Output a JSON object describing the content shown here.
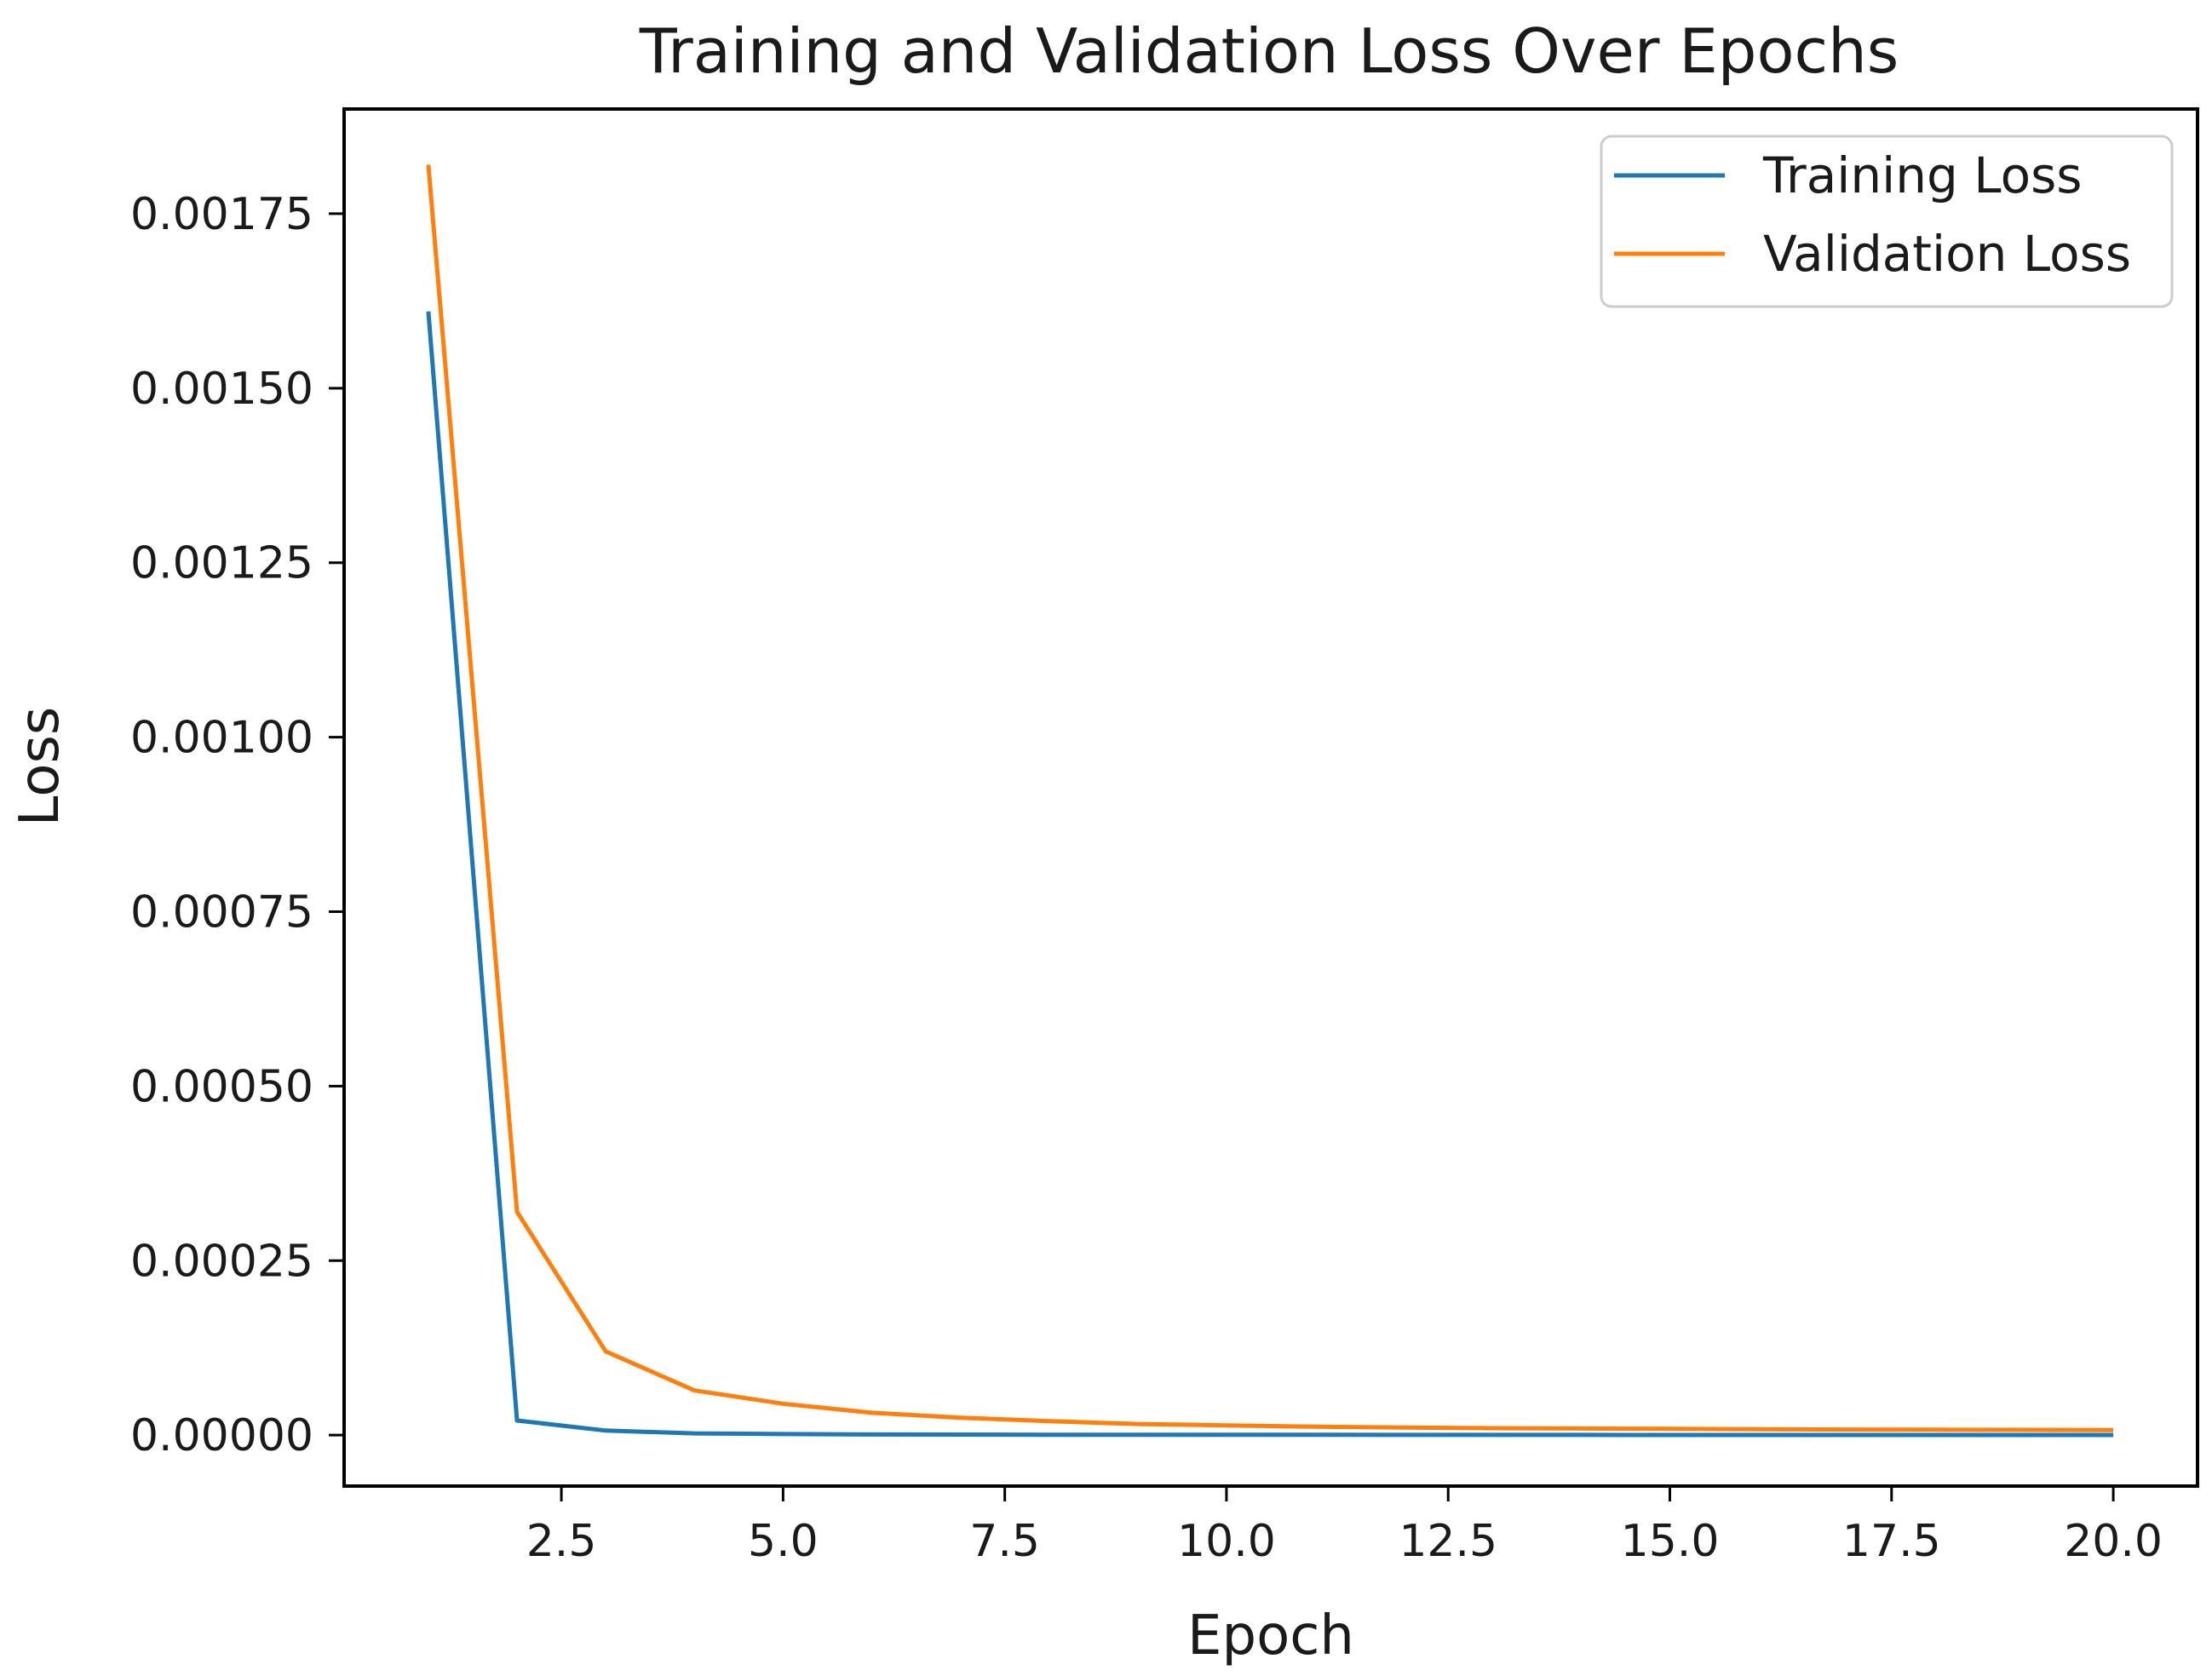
{
  "chart_data": {
    "type": "line",
    "title": "Training and Validation Loss Over Epochs",
    "xlabel": "Epoch",
    "ylabel": "Loss",
    "xlim": [
      0.05,
      20.95
    ],
    "ylim": [
      -7.3e-05,
      0.0019
    ],
    "x_ticks": [
      2.5,
      5.0,
      7.5,
      10.0,
      12.5,
      15.0,
      17.5,
      20.0
    ],
    "x_tick_labels": [
      "2.5",
      "5.0",
      "7.5",
      "10.0",
      "12.5",
      "15.0",
      "17.5",
      "20.0"
    ],
    "y_ticks": [
      0.0,
      0.00025,
      0.0005,
      0.00075,
      0.001,
      0.00125,
      0.0015,
      0.00175
    ],
    "y_tick_labels": [
      "0.00000",
      "0.00025",
      "0.00050",
      "0.00075",
      "0.00100",
      "0.00125",
      "0.00150",
      "0.00175"
    ],
    "grid": false,
    "legend_position": "top-right",
    "x": [
      1,
      2,
      3,
      4,
      5,
      6,
      7,
      8,
      9,
      10,
      11,
      12,
      13,
      14,
      15,
      16,
      17,
      18,
      19,
      20
    ],
    "series": [
      {
        "name": "Training Loss",
        "color": "#1f77b4",
        "values": [
          0.00161,
          2.1e-05,
          6.5e-06,
          2.5e-06,
          1.5e-06,
          1e-06,
          8e-07,
          6e-07,
          5e-07,
          4e-07,
          4e-07,
          3e-07,
          3e-07,
          3e-07,
          2e-07,
          2e-07,
          2e-07,
          2e-07,
          2e-07,
          2e-07
        ]
      },
      {
        "name": "Validation Loss",
        "color": "#ff7f0e",
        "values": [
          0.00182,
          0.00032,
          0.00012,
          6.4e-05,
          4.5e-05,
          3.2e-05,
          2.5e-05,
          2e-05,
          1.6e-05,
          1.4e-05,
          1.2e-05,
          1.1e-05,
          1e-05,
          9.5e-06,
          9e-06,
          8.5e-06,
          8e-06,
          7.8e-06,
          7.5e-06,
          7.2e-06
        ]
      }
    ]
  }
}
